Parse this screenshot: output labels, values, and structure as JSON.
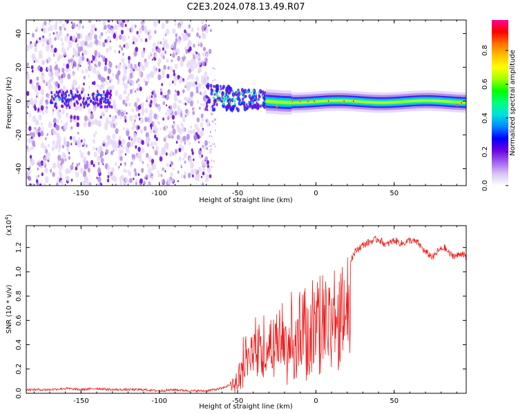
{
  "title": "C2E3.2024.078.13.49.R07",
  "colors": {
    "snr_line": "#ee1c1c",
    "scatter_light": "#e6d7f7",
    "scatter_mid": "#b48ce8",
    "scatter_dark": "#6a10d8",
    "colorbar": [
      "#ffffff",
      "#d9c2f5",
      "#a060f0",
      "#6a00e0",
      "#0000ff",
      "#0088ff",
      "#00e0e0",
      "#00ff80",
      "#00ff00",
      "#a0ff00",
      "#ffff00",
      "#ffc000",
      "#ff7000",
      "#ff0000",
      "#ff0090"
    ]
  },
  "chart_data": [
    {
      "type": "heatmap",
      "xlabel": "Height of straight line (km)",
      "ylabel": "Frequency (Hz)",
      "xlim": [
        -185,
        96
      ],
      "ylim": [
        -50,
        48
      ],
      "xticks": [
        -150,
        -100,
        -50,
        0,
        50
      ],
      "yticks": [
        -40,
        -20,
        0,
        20,
        40
      ],
      "colorbar": {
        "label": "Normalized spectral amplitude",
        "range": [
          0.0,
          0.98
        ],
        "ticks": [
          "0.0",
          "0.2",
          "0.4",
          "0.6",
          "0.8"
        ]
      },
      "regions": [
        {
          "x_range": [
            -185,
            -67
          ],
          "description_values": "broadband scatter, amplitude 0.0-0.2"
        },
        {
          "x_range": [
            -70,
            -30
          ],
          "center_freq": 0,
          "spread_hz": 8,
          "amplitude": [
            0.3,
            0.6
          ]
        },
        {
          "x_range": [
            -30,
            96
          ],
          "center_freq": 0,
          "spread_hz": 3,
          "amplitude": [
            0.5,
            0.95
          ]
        }
      ]
    },
    {
      "type": "line",
      "xlabel": "Height of straight line (km)",
      "ylabel": "SNR (10 * v/v)",
      "yunit": "(x10^4)",
      "xlim": [
        -185,
        96
      ],
      "ylim": [
        0,
        1.38
      ],
      "xticks": [
        -150,
        -100,
        -50,
        0,
        50
      ],
      "yticks": [
        "0.0",
        "0.2",
        "0.4",
        "0.6",
        "0.8",
        "1.0",
        "1.2"
      ],
      "series": [
        {
          "values": [
            [
              -185,
              0.02
            ],
            [
              -170,
              0.02
            ],
            [
              -160,
              0.03
            ],
            [
              -150,
              0.02
            ],
            [
              -140,
              0.03
            ],
            [
              -130,
              0.02
            ],
            [
              -120,
              0.02
            ],
            [
              -110,
              0.02
            ],
            [
              -100,
              0.01
            ],
            [
              -90,
              0.02
            ],
            [
              -80,
              0.01
            ],
            [
              -70,
              0.01
            ],
            [
              -60,
              0.03
            ],
            [
              -55,
              0.06
            ],
            [
              -50,
              0.15
            ],
            [
              -46,
              0.45
            ],
            [
              -42,
              0.55
            ],
            [
              -38,
              0.7
            ],
            [
              -34,
              0.72
            ],
            [
              -30,
              0.62
            ],
            [
              -26,
              0.7
            ],
            [
              -22,
              0.78
            ],
            [
              -18,
              0.8
            ],
            [
              -14,
              0.83
            ],
            [
              -10,
              0.88
            ],
            [
              -6,
              0.92
            ],
            [
              -2,
              0.93
            ],
            [
              2,
              0.96
            ],
            [
              6,
              0.98
            ],
            [
              10,
              1.0
            ],
            [
              14,
              0.98
            ],
            [
              18,
              1.03
            ],
            [
              22,
              1.1
            ],
            [
              26,
              1.18
            ],
            [
              30,
              1.22
            ],
            [
              35,
              1.25
            ],
            [
              40,
              1.27
            ],
            [
              45,
              1.22
            ],
            [
              50,
              1.26
            ],
            [
              55,
              1.23
            ],
            [
              60,
              1.26
            ],
            [
              65,
              1.24
            ],
            [
              70,
              1.16
            ],
            [
              75,
              1.12
            ],
            [
              78,
              1.17
            ],
            [
              82,
              1.2
            ],
            [
              86,
              1.14
            ],
            [
              90,
              1.13
            ],
            [
              94,
              1.16
            ],
            [
              96,
              1.1
            ]
          ]
        }
      ]
    }
  ]
}
